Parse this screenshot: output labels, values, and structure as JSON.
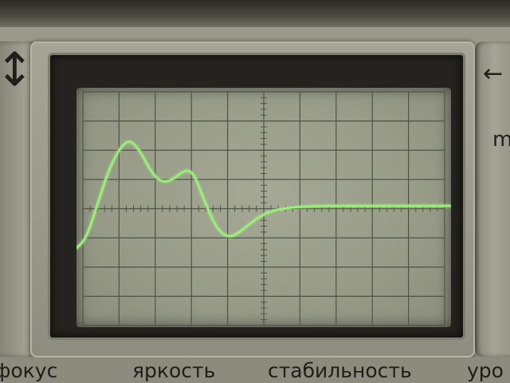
{
  "scene": {
    "description_tag": "oscilloscope-screen",
    "trace_color": "#9bf07a",
    "screen_color": "#9a9e8b",
    "grid_color": "#4f5447"
  },
  "panel": {
    "left_symbol": "↕",
    "right_symbol": "←",
    "right_mark": "m"
  },
  "controls": {
    "labels": [
      "фокус",
      "яркость",
      "стабильность",
      "уро"
    ]
  },
  "grid": {
    "divisions_x": 10,
    "divisions_y": 8
  }
}
